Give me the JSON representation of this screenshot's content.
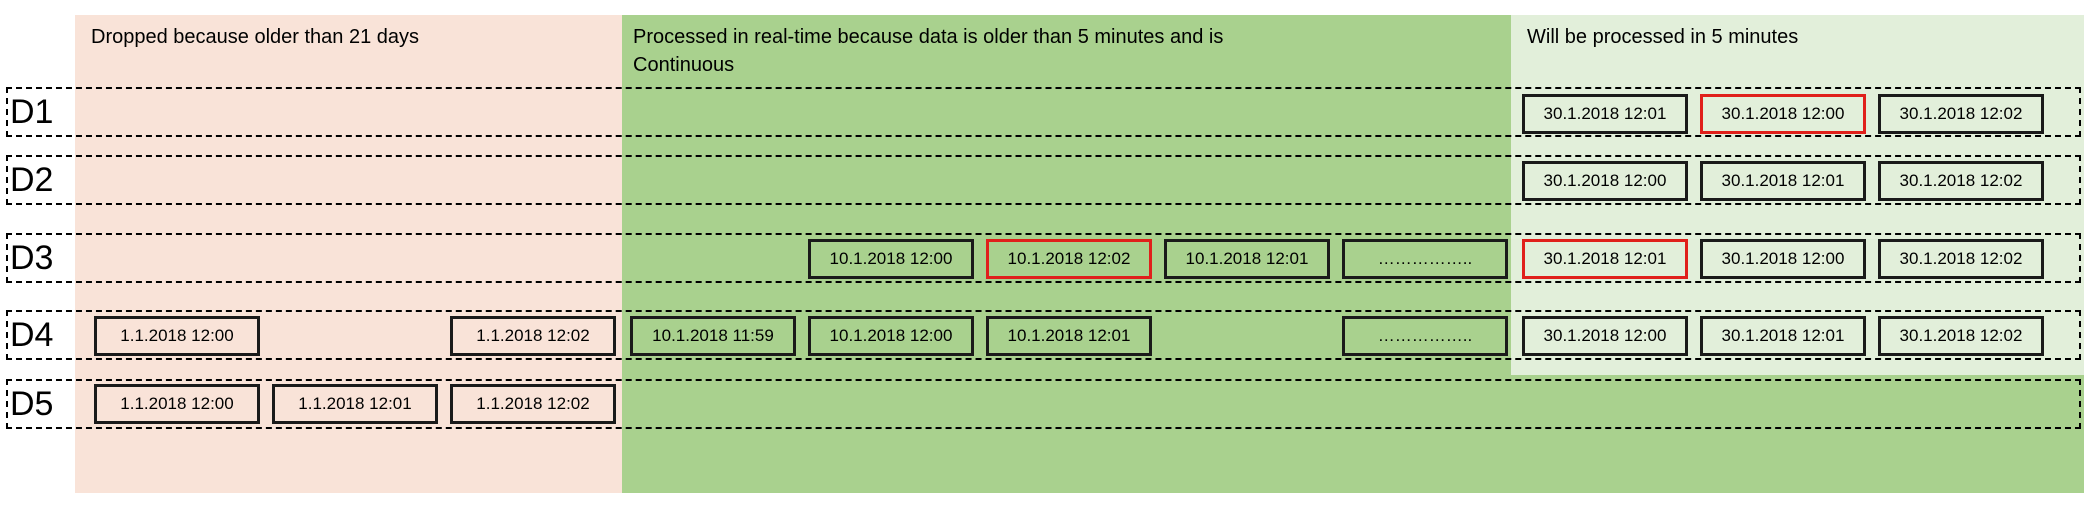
{
  "zones": {
    "dropped": {
      "title": "Dropped because older than 21 days",
      "color": "#f9e3d8"
    },
    "realtime": {
      "title_line1": "Processed in real-time because data is older than 5 minutes and is",
      "title_line2": "Continuous",
      "color": "#a9d18e"
    },
    "future": {
      "title": "Will be processed in 5 minutes",
      "color": "#e2efda"
    }
  },
  "rows": [
    {
      "label": "D1",
      "boxes": [
        {
          "text": "30.1.2018 12:01",
          "highlight": false
        },
        {
          "text": "30.1.2018 12:00",
          "highlight": true
        },
        {
          "text": "30.1.2018 12:02",
          "highlight": false
        }
      ]
    },
    {
      "label": "D2",
      "boxes": [
        {
          "text": "30.1.2018 12:00",
          "highlight": false
        },
        {
          "text": "30.1.2018 12:01",
          "highlight": false
        },
        {
          "text": "30.1.2018 12:02",
          "highlight": false
        }
      ]
    },
    {
      "label": "D3",
      "boxes": [
        {
          "text": "10.1.2018 12:00",
          "highlight": false
        },
        {
          "text": "10.1.2018 12:02",
          "highlight": true
        },
        {
          "text": "10.1.2018 12:01",
          "highlight": false
        },
        {
          "text": "……………..",
          "highlight": false
        },
        {
          "text": "30.1.2018 12:01",
          "highlight": true
        },
        {
          "text": "30.1.2018 12:00",
          "highlight": false
        },
        {
          "text": "30.1.2018 12:02",
          "highlight": false
        }
      ]
    },
    {
      "label": "D4",
      "boxes": [
        {
          "text": "1.1.2018 12:00",
          "highlight": false
        },
        {
          "text": "1.1.2018 12:02",
          "highlight": false
        },
        {
          "text": "10.1.2018 11:59",
          "highlight": false
        },
        {
          "text": "10.1.2018 12:00",
          "highlight": false
        },
        {
          "text": "10.1.2018 12:01",
          "highlight": false
        },
        {
          "text": "……………..",
          "highlight": false
        },
        {
          "text": "30.1.2018 12:00",
          "highlight": false
        },
        {
          "text": "30.1.2018 12:01",
          "highlight": false
        },
        {
          "text": "30.1.2018 12:02",
          "highlight": false
        }
      ]
    },
    {
      "label": "D5",
      "boxes": [
        {
          "text": "1.1.2018 12:00",
          "highlight": false
        },
        {
          "text": "1.1.2018 12:01",
          "highlight": false
        },
        {
          "text": "1.1.2018 12:02",
          "highlight": false
        }
      ]
    }
  ]
}
